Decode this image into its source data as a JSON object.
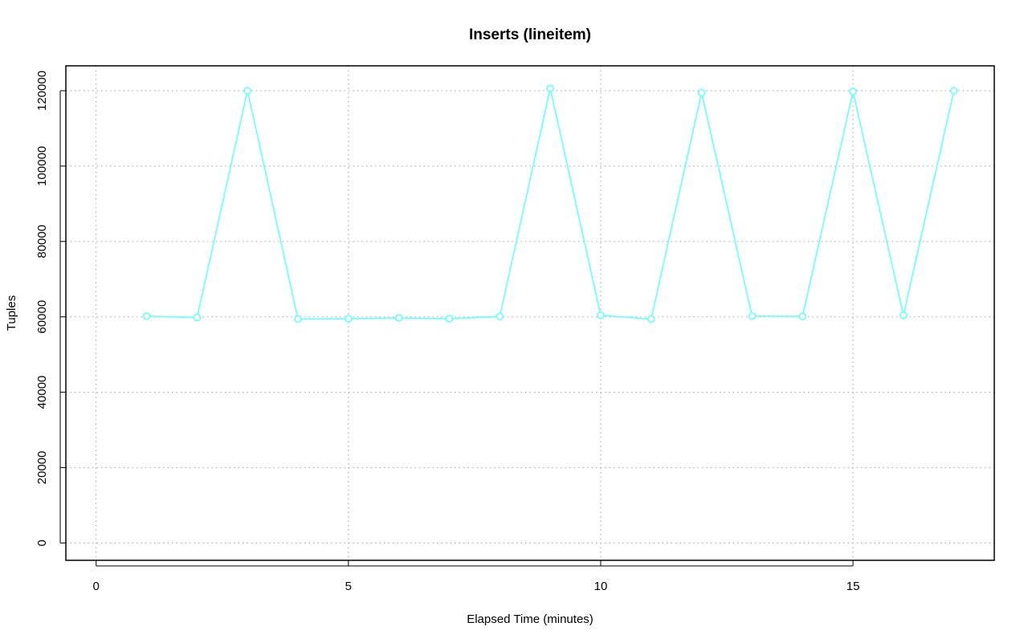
{
  "chart_data": {
    "type": "line",
    "title": "Inserts (lineitem)",
    "xlabel": "Elapsed Time (minutes)",
    "ylabel": "Tuples",
    "xlim": [
      -0.6,
      17.8
    ],
    "ylim": [
      -4600,
      126600
    ],
    "xticks": [
      0,
      5,
      10,
      15
    ],
    "yticks": [
      0,
      20000,
      40000,
      60000,
      80000,
      100000,
      120000
    ],
    "grid": true,
    "color": "#66ffff",
    "series": [
      {
        "x": [
          1,
          2,
          3,
          4,
          5,
          6,
          7,
          8,
          9,
          10,
          11,
          12,
          13,
          14,
          15,
          16,
          17
        ],
        "values": [
          60200,
          59800,
          120000,
          59400,
          59500,
          59700,
          59500,
          60100,
          120600,
          60400,
          59400,
          119500,
          60200,
          60100,
          119800,
          60400,
          120000
        ]
      }
    ]
  }
}
